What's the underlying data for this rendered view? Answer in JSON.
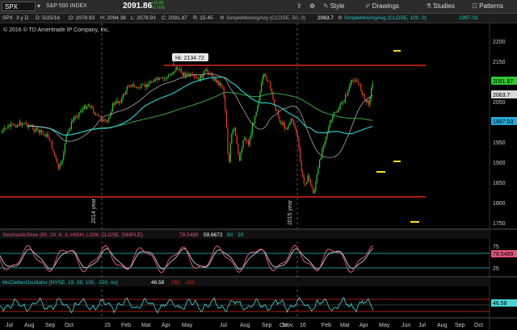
{
  "toolbar": {
    "symbol": "SPX",
    "symbol_dropdown": "▾",
    "timeframe": "3 y D",
    "ohlc": {
      "date_label": "D: 5/25/16",
      "open_label": "O: 2078.93",
      "high_label": "H: 2094.38",
      "low_label": "L: 2078.93",
      "close_label": "C: 2091.87",
      "range_label": "R: 15.45"
    },
    "instrument_name": "S&P 500 INDEX",
    "last_price": "2091.86",
    "change": "+15.80",
    "change_pct": "+0.76%",
    "style_label": "Style",
    "drawings_label": "Drawings",
    "studies_label": "Studies",
    "patterns_label": "Patterns"
  },
  "header": {
    "sma50_label": "SimpleMovingAvg (CLOSE, 50, 0)",
    "sma50_value": "2063.7",
    "sma100_label": "SimpleMovingAvg (CLOSE, 100, 0)",
    "sma100_value": "1997.03"
  },
  "chart": {
    "copyright": "© 2016 © TD Ameritrade IP Company, Inc.",
    "hi_label": "Hi: 2134.72",
    "year_label_2014": "2014 year",
    "year_label_2015": "2015 year",
    "price_ticks": [
      "2200",
      "2150",
      "2100",
      "2050",
      "2000",
      "1950",
      "1900",
      "1850",
      "1800",
      "1750"
    ],
    "last_price_tag": "2091.87",
    "sma50_tag": "2063.7",
    "sma100_tag": "1997.03",
    "stoch": {
      "label": "StochasticSlow (80, 20, 8, 3, HIGH, LOW, CLOSE, SIMPLE)",
      "value_k": "78.5489",
      "value_d": "59.6672",
      "level_hi": "80",
      "level_lo": "20",
      "tag": "78.5489",
      "ticks": [
        "75",
        "25"
      ]
    },
    "mcclellan": {
      "label": "McClellanOscillator (NYSE, 19, 39, 150, -150, no)",
      "value": "46.58",
      "level_hi": "150",
      "level_lo": "-150",
      "tag": "46.58"
    },
    "time_axis": [
      "Jul",
      "Aug",
      "Sep",
      "Oct",
      "15",
      "Feb",
      "Mar",
      "Apr",
      "May",
      "Jul",
      "Aug",
      "Sep",
      "Oct",
      "Nov",
      "16",
      "Feb",
      "Mar",
      "Apr",
      "May",
      "Jun",
      "Jul",
      "Aug",
      "Sep",
      "Oct",
      "Nov"
    ]
  },
  "colors": {
    "background": "#000000",
    "candle_up": "#2fc92f",
    "candle_down": "#e23b2b",
    "resistance": "#e0281b",
    "sma50": "#d9d9d9",
    "sma100": "#29c5c5",
    "sma200": "#3fa83f",
    "stoch_k": "#e0557a",
    "stoch_d": "#f2f2f2",
    "mcclellan": "#4ad6d6",
    "tag_green": "#2fc92f",
    "tag_cyan": "#29a8d8"
  }
}
